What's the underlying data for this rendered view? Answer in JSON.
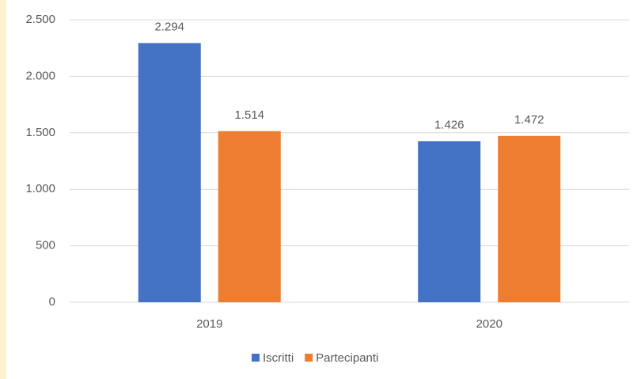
{
  "chart_data": {
    "type": "bar",
    "categories": [
      "2019",
      "2020"
    ],
    "series": [
      {
        "name": "Iscritti",
        "color": "#4472c4",
        "values": [
          2294,
          1426
        ],
        "value_labels": [
          "2.294",
          "1.426"
        ]
      },
      {
        "name": "Partecipanti",
        "color": "#ed7d31",
        "values": [
          1514,
          1472
        ],
        "value_labels": [
          "1.514",
          "1.472"
        ]
      }
    ],
    "ylim": [
      0,
      2500
    ],
    "yticks": [
      0,
      500,
      {
        "value": 1000,
        "label": "1.000"
      },
      {
        "value": 1500,
        "label": "1.500"
      },
      {
        "value": 2000,
        "label": "2.000"
      },
      {
        "value": 2500,
        "label": "2.500"
      }
    ],
    "grid": true,
    "legend": "bottom"
  }
}
